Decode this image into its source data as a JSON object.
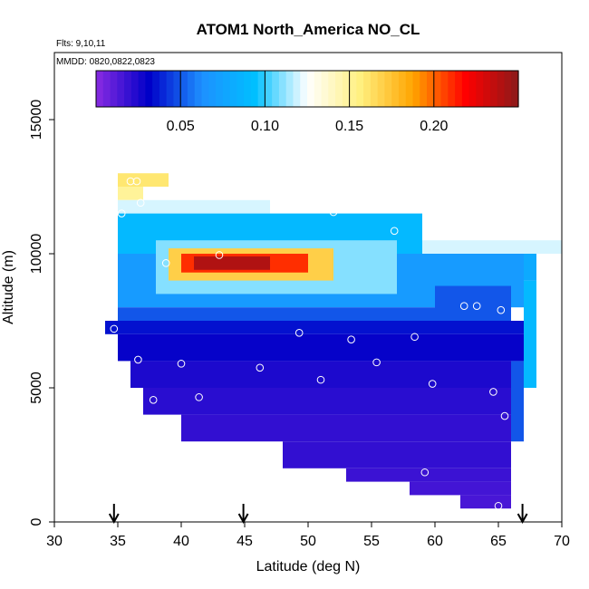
{
  "chart_data": {
    "type": "heatmap",
    "title": "ATOM1 North_America NO_CL",
    "flights_label": "Flts: 9,10,11",
    "dates_label": "MMDD: 0820,0822,0823",
    "xlabel": "Latitude (deg N)",
    "ylabel": "Altitude (m)",
    "xlim": [
      30,
      70
    ],
    "ylim": [
      0,
      17500
    ],
    "x_ticks": [
      30,
      35,
      40,
      45,
      50,
      55,
      60,
      65,
      70
    ],
    "y_ticks": [
      0,
      5000,
      10000,
      15000
    ],
    "colorbar": {
      "min": 0.0,
      "max": 0.25,
      "ticks": [
        0.05,
        0.1,
        0.15,
        0.2
      ],
      "tick_labels": [
        "0.05",
        "0.10",
        "0.15",
        "0.20"
      ],
      "stops": [
        "#8a2be2",
        "#0000c8",
        "#1e90ff",
        "#00bfff",
        "#ffffff",
        "#fff080",
        "#ffa500",
        "#ff0000",
        "#8b1a1a"
      ]
    },
    "arrow_latitudes": [
      34.7,
      44.9,
      66.9
    ],
    "grid_cell": {
      "dlat": 1,
      "dalt": 500
    },
    "regions": [
      {
        "lat": [
          35,
          39
        ],
        "alt": [
          12500,
          13000
        ],
        "value": 0.16
      },
      {
        "lat": [
          35,
          37
        ],
        "alt": [
          12000,
          12500
        ],
        "value": 0.15
      },
      {
        "lat": [
          35,
          47
        ],
        "alt": [
          11500,
          12000
        ],
        "value": 0.12
      },
      {
        "lat": [
          35,
          59
        ],
        "alt": [
          10000,
          11500
        ],
        "value": 0.09
      },
      {
        "lat": [
          59,
          70
        ],
        "alt": [
          10000,
          10500
        ],
        "value": 0.12
      },
      {
        "lat": [
          59,
          68
        ],
        "alt": [
          9000,
          10000
        ],
        "value": 0.08
      },
      {
        "lat": [
          35,
          67
        ],
        "alt": [
          8000,
          10000
        ],
        "value": 0.07
      },
      {
        "lat": [
          38,
          57
        ],
        "alt": [
          8500,
          10500
        ],
        "value": 0.11
      },
      {
        "lat": [
          39,
          52
        ],
        "alt": [
          9000,
          10200
        ],
        "value": 0.17
      },
      {
        "lat": [
          40,
          50
        ],
        "alt": [
          9300,
          10000
        ],
        "value": 0.21
      },
      {
        "lat": [
          41,
          47
        ],
        "alt": [
          9400,
          9900
        ],
        "value": 0.24
      },
      {
        "lat": [
          35,
          66
        ],
        "alt": [
          7500,
          8000
        ],
        "value": 0.05
      },
      {
        "lat": [
          34,
          67
        ],
        "alt": [
          7000,
          7500
        ],
        "value": 0.035
      },
      {
        "lat": [
          35,
          67
        ],
        "alt": [
          6000,
          7000
        ],
        "value": 0.03
      },
      {
        "lat": [
          36,
          67
        ],
        "alt": [
          5000,
          6000
        ],
        "value": 0.025
      },
      {
        "lat": [
          37,
          67
        ],
        "alt": [
          4000,
          5000
        ],
        "value": 0.022
      },
      {
        "lat": [
          40,
          66
        ],
        "alt": [
          3000,
          4000
        ],
        "value": 0.02
      },
      {
        "lat": [
          48,
          66
        ],
        "alt": [
          2000,
          3000
        ],
        "value": 0.02
      },
      {
        "lat": [
          53,
          66
        ],
        "alt": [
          1500,
          2000
        ],
        "value": 0.018
      },
      {
        "lat": [
          58,
          66
        ],
        "alt": [
          1000,
          1500
        ],
        "value": 0.016
      },
      {
        "lat": [
          62,
          66
        ],
        "alt": [
          500,
          1000
        ],
        "value": 0.015
      },
      {
        "lat": [
          66,
          67
        ],
        "alt": [
          3000,
          6000
        ],
        "value": 0.05
      },
      {
        "lat": [
          67,
          68
        ],
        "alt": [
          5000,
          9000
        ],
        "value": 0.09
      },
      {
        "lat": [
          60,
          66
        ],
        "alt": [
          7500,
          8800
        ],
        "value": 0.05
      }
    ],
    "points": [
      [
        36.0,
        12700
      ],
      [
        36.5,
        12700
      ],
      [
        35.3,
        11500
      ],
      [
        36.8,
        11900
      ],
      [
        47.5,
        11750
      ],
      [
        52.0,
        11550
      ],
      [
        56.8,
        10850
      ],
      [
        61.0,
        10650
      ],
      [
        38.8,
        9650
      ],
      [
        43.0,
        9950
      ],
      [
        34.7,
        7200
      ],
      [
        36.6,
        6050
      ],
      [
        40.0,
        5900
      ],
      [
        46.2,
        5750
      ],
      [
        49.3,
        7050
      ],
      [
        53.4,
        6800
      ],
      [
        58.4,
        6900
      ],
      [
        62.3,
        8050
      ],
      [
        63.3,
        8050
      ],
      [
        65.2,
        7900
      ],
      [
        51.0,
        5300
      ],
      [
        55.4,
        5950
      ],
      [
        59.8,
        5150
      ],
      [
        64.6,
        4850
      ],
      [
        65.5,
        3950
      ],
      [
        37.8,
        4550
      ],
      [
        41.4,
        4650
      ],
      [
        59.2,
        1850
      ],
      [
        65.0,
        600
      ]
    ]
  }
}
